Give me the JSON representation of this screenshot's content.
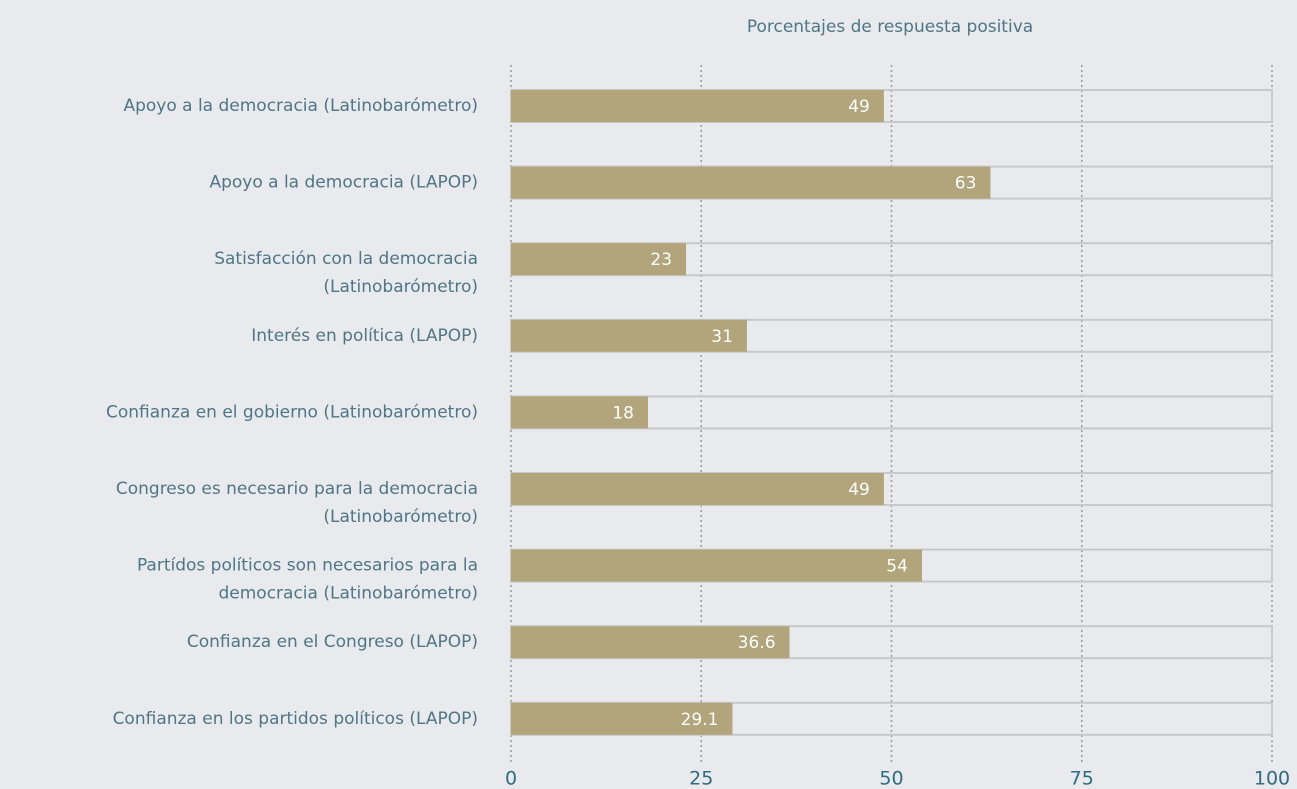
{
  "chart_data": {
    "type": "barh",
    "title": "Porcentajes de respuesta positiva",
    "categories": [
      "Apoyo a la democracia (Latinobarómetro)",
      "Apoyo a la democracia (LAPOP)",
      "Satisfacción con la democracia\n(Latinobarómetro)",
      "Interés en política (LAPOP)",
      "Confianza en el gobierno (Latinobarómetro)",
      "Congreso es necesario para la democracia\n(Latinobarómetro)",
      "Partídos políticos son necesarios para la\ndemocracia (Latinobarómetro)",
      "Confianza en el Congreso (LAPOP)",
      "Confianza en los partidos políticos (LAPOP)"
    ],
    "values": [
      49,
      63,
      23,
      31,
      18,
      49,
      54,
      36.6,
      29.1
    ],
    "color": "#b2a47b",
    "xlim": [
      0,
      100
    ],
    "xticks": [
      0,
      25,
      50,
      75,
      100
    ],
    "grid": true
  }
}
